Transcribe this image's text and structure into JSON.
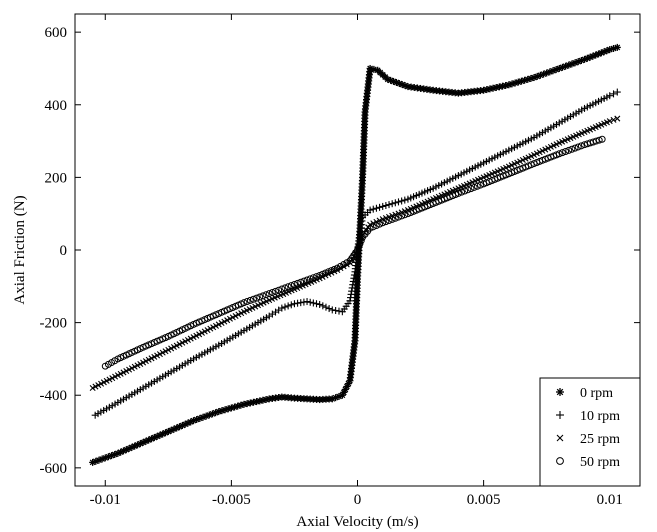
{
  "chart_data": {
    "type": "scatter",
    "xlabel": "Axial Velocity (m/s)",
    "ylabel": "Axial Friction (N)",
    "xlim": [
      -0.0112,
      0.0112
    ],
    "ylim": [
      -650,
      650
    ],
    "xticks": [
      -0.01,
      -0.005,
      0,
      0.005,
      0.01
    ],
    "xtick_labels": [
      "-0.01",
      "-0.005",
      "0",
      "0.005",
      "0.01"
    ],
    "yticks": [
      -600,
      -400,
      -200,
      0,
      200,
      400,
      600
    ],
    "ytick_labels": [
      "-600",
      "-400",
      "-200",
      "0",
      "200",
      "400",
      "600"
    ],
    "grid": false,
    "legend_position": "bottom-right",
    "series": [
      {
        "name": "0 rpm",
        "marker": "asterisk",
        "points": [
          [
            -0.0105,
            -585
          ],
          [
            -0.0095,
            -560
          ],
          [
            -0.0085,
            -530
          ],
          [
            -0.0075,
            -500
          ],
          [
            -0.0065,
            -470
          ],
          [
            -0.0055,
            -445
          ],
          [
            -0.0045,
            -425
          ],
          [
            -0.0035,
            -410
          ],
          [
            -0.003,
            -405
          ],
          [
            -0.0025,
            -408
          ],
          [
            -0.002,
            -410
          ],
          [
            -0.0015,
            -412
          ],
          [
            -0.001,
            -410
          ],
          [
            -0.0006,
            -400
          ],
          [
            -0.0003,
            -360
          ],
          [
            -0.0001,
            -250
          ],
          [
            0.0,
            -80
          ],
          [
            0.0001,
            60
          ],
          [
            0.0002,
            200
          ],
          [
            0.0003,
            380
          ],
          [
            0.0005,
            500
          ],
          [
            0.0008,
            495
          ],
          [
            0.0012,
            470
          ],
          [
            0.002,
            450
          ],
          [
            0.003,
            440
          ],
          [
            0.004,
            432
          ],
          [
            0.005,
            440
          ],
          [
            0.006,
            455
          ],
          [
            0.007,
            475
          ],
          [
            0.008,
            500
          ],
          [
            0.009,
            525
          ],
          [
            0.01,
            552
          ],
          [
            0.0103,
            558
          ]
        ]
      },
      {
        "name": "10 rpm",
        "marker": "plus",
        "points": [
          [
            -0.0104,
            -455
          ],
          [
            -0.0095,
            -420
          ],
          [
            -0.0085,
            -380
          ],
          [
            -0.0075,
            -340
          ],
          [
            -0.0065,
            -300
          ],
          [
            -0.0055,
            -262
          ],
          [
            -0.0045,
            -222
          ],
          [
            -0.0035,
            -182
          ],
          [
            -0.003,
            -160
          ],
          [
            -0.0025,
            -148
          ],
          [
            -0.002,
            -142
          ],
          [
            -0.0015,
            -150
          ],
          [
            -0.001,
            -165
          ],
          [
            -0.0006,
            -170
          ],
          [
            -0.0003,
            -140
          ],
          [
            -0.0001,
            -60
          ],
          [
            0.0,
            0
          ],
          [
            0.0001,
            50
          ],
          [
            0.0002,
            90
          ],
          [
            0.0005,
            110
          ],
          [
            0.001,
            120
          ],
          [
            0.002,
            140
          ],
          [
            0.003,
            170
          ],
          [
            0.004,
            205
          ],
          [
            0.005,
            240
          ],
          [
            0.006,
            275
          ],
          [
            0.007,
            310
          ],
          [
            0.008,
            350
          ],
          [
            0.009,
            390
          ],
          [
            0.01,
            425
          ],
          [
            0.0103,
            435
          ]
        ]
      },
      {
        "name": "25 rpm",
        "marker": "cross",
        "points": [
          [
            -0.0105,
            -380
          ],
          [
            -0.0095,
            -345
          ],
          [
            -0.0085,
            -310
          ],
          [
            -0.0075,
            -275
          ],
          [
            -0.0065,
            -240
          ],
          [
            -0.0055,
            -205
          ],
          [
            -0.0045,
            -170
          ],
          [
            -0.0035,
            -138
          ],
          [
            -0.0025,
            -108
          ],
          [
            -0.0015,
            -78
          ],
          [
            -0.0008,
            -55
          ],
          [
            -0.0003,
            -35
          ],
          [
            0.0,
            0
          ],
          [
            0.0002,
            40
          ],
          [
            0.0005,
            70
          ],
          [
            0.001,
            85
          ],
          [
            0.002,
            110
          ],
          [
            0.003,
            140
          ],
          [
            0.004,
            170
          ],
          [
            0.005,
            200
          ],
          [
            0.006,
            230
          ],
          [
            0.007,
            262
          ],
          [
            0.008,
            295
          ],
          [
            0.009,
            325
          ],
          [
            0.01,
            355
          ],
          [
            0.0103,
            362
          ]
        ]
      },
      {
        "name": "50 rpm",
        "marker": "circle",
        "points": [
          [
            -0.01,
            -320
          ],
          [
            -0.0095,
            -300
          ],
          [
            -0.0085,
            -268
          ],
          [
            -0.0075,
            -238
          ],
          [
            -0.0065,
            -205
          ],
          [
            -0.0055,
            -175
          ],
          [
            -0.0045,
            -145
          ],
          [
            -0.0035,
            -120
          ],
          [
            -0.0025,
            -95
          ],
          [
            -0.0015,
            -70
          ],
          [
            -0.0008,
            -50
          ],
          [
            -0.0003,
            -30
          ],
          [
            0.0,
            0
          ],
          [
            0.0002,
            35
          ],
          [
            0.0005,
            60
          ],
          [
            0.001,
            75
          ],
          [
            0.002,
            100
          ],
          [
            0.003,
            128
          ],
          [
            0.004,
            156
          ],
          [
            0.005,
            182
          ],
          [
            0.006,
            210
          ],
          [
            0.007,
            238
          ],
          [
            0.008,
            265
          ],
          [
            0.009,
            290
          ],
          [
            0.0097,
            305
          ]
        ]
      }
    ]
  }
}
